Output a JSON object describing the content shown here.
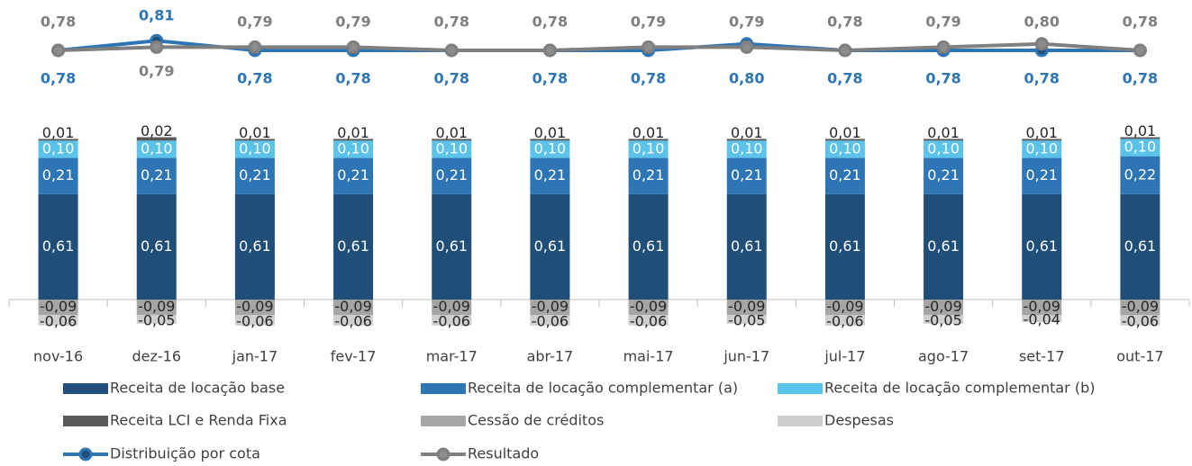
{
  "chart_data": {
    "type": "combo",
    "categories": [
      "nov-16",
      "dez-16",
      "jan-17",
      "fev-17",
      "mar-17",
      "abr-17",
      "mai-17",
      "jun-17",
      "jul-17",
      "ago-17",
      "set-17",
      "out-17"
    ],
    "series": [
      {
        "name": "Receita de locação base",
        "type": "bar",
        "color": "#1f4e79",
        "values": [
          0.61,
          0.61,
          0.61,
          0.61,
          0.61,
          0.61,
          0.61,
          0.61,
          0.61,
          0.61,
          0.61,
          0.61
        ],
        "value_labels": [
          "0,61",
          "0,61",
          "0,61",
          "0,61",
          "0,61",
          "0,61",
          "0,61",
          "0,61",
          "0,61",
          "0,61",
          "0,61",
          "0,61"
        ]
      },
      {
        "name": "Receita de locação complementar (a)",
        "type": "bar",
        "color": "#2e75b6",
        "values": [
          0.21,
          0.21,
          0.21,
          0.21,
          0.21,
          0.21,
          0.21,
          0.21,
          0.21,
          0.21,
          0.21,
          0.22
        ],
        "value_labels": [
          "0,21",
          "0,21",
          "0,21",
          "0,21",
          "0,21",
          "0,21",
          "0,21",
          "0,21",
          "0,21",
          "0,21",
          "0,21",
          "0,22"
        ]
      },
      {
        "name": "Receita de locação complementar (b)",
        "type": "bar",
        "color": "#5bc3ea",
        "values": [
          0.1,
          0.1,
          0.1,
          0.1,
          0.1,
          0.1,
          0.1,
          0.1,
          0.1,
          0.1,
          0.1,
          0.1
        ],
        "value_labels": [
          "0,10",
          "0,10",
          "0,10",
          "0,10",
          "0,10",
          "0,10",
          "0,10",
          "0,10",
          "0,10",
          "0,10",
          "0,10",
          "0,10"
        ]
      },
      {
        "name": "Receita LCI e Renda Fixa",
        "type": "bar",
        "color": "#595959",
        "values": [
          0.01,
          0.02,
          0.01,
          0.01,
          0.01,
          0.01,
          0.01,
          0.01,
          0.01,
          0.01,
          0.01,
          0.01
        ],
        "value_labels": [
          "0,01",
          "0,02",
          "0,01",
          "0,01",
          "0,01",
          "0,01",
          "0,01",
          "0,01",
          "0,01",
          "0,01",
          "0,01",
          "0,01"
        ]
      },
      {
        "name": "Cessão de créditos",
        "type": "bar",
        "color": "#a5a5a5",
        "values": [
          -0.09,
          -0.09,
          -0.09,
          -0.09,
          -0.09,
          -0.09,
          -0.09,
          -0.09,
          -0.09,
          -0.09,
          -0.09,
          -0.09
        ],
        "value_labels": [
          "-0,09",
          "-0,09",
          "-0,09",
          "-0,09",
          "-0,09",
          "-0,09",
          "-0,09",
          "-0,09",
          "-0,09",
          "-0,09",
          "-0,09",
          "-0,09"
        ]
      },
      {
        "name": "Despesas",
        "type": "bar",
        "color": "#d0cece",
        "values": [
          -0.06,
          -0.05,
          -0.06,
          -0.06,
          -0.06,
          -0.06,
          -0.06,
          -0.05,
          -0.06,
          -0.05,
          -0.04,
          -0.06
        ],
        "value_labels": [
          "-0,06",
          "-0,05",
          "-0,06",
          "-0,06",
          "-0,06",
          "-0,06",
          "-0,06",
          "-0,05",
          "-0,06",
          "-0,05",
          "-0,04",
          "-0,06"
        ]
      },
      {
        "name": "Distribuição por cota",
        "type": "line",
        "color": "#2e75b6",
        "values": [
          0.78,
          0.81,
          0.78,
          0.78,
          0.78,
          0.78,
          0.78,
          0.8,
          0.78,
          0.78,
          0.78,
          0.78
        ],
        "value_labels": [
          "0,78",
          "0,81",
          "0,78",
          "0,78",
          "0,78",
          "0,78",
          "0,78",
          "0,80",
          "0,78",
          "0,78",
          "0,78",
          "0,78"
        ]
      },
      {
        "name": "Resultado",
        "type": "line",
        "color": "#7f7f7f",
        "values": [
          0.78,
          0.79,
          0.79,
          0.79,
          0.78,
          0.78,
          0.79,
          0.79,
          0.78,
          0.79,
          0.8,
          0.78
        ],
        "value_labels": [
          "0,78",
          "0,79",
          "0,79",
          "0,79",
          "0,78",
          "0,78",
          "0,79",
          "0,79",
          "0,78",
          "0,79",
          "0,80",
          "0,78"
        ]
      }
    ]
  }
}
